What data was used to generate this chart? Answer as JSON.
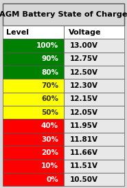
{
  "title": "AGM Battery State of Charge",
  "col_headers": [
    "Level",
    "Voltage"
  ],
  "rows": [
    {
      "level": "100%",
      "voltage": "13.00V",
      "color": "#008000"
    },
    {
      "level": "90%",
      "voltage": "12.75V",
      "color": "#008000"
    },
    {
      "level": "80%",
      "voltage": "12.50V",
      "color": "#008000"
    },
    {
      "level": "70%",
      "voltage": "12.30V",
      "color": "#FFFF00"
    },
    {
      "level": "60%",
      "voltage": "12.15V",
      "color": "#FFFF00"
    },
    {
      "level": "50%",
      "voltage": "12.05V",
      "color": "#FFFF00"
    },
    {
      "level": "40%",
      "voltage": "11.95V",
      "color": "#FF0000"
    },
    {
      "level": "30%",
      "voltage": "11.81V",
      "color": "#FF0000"
    },
    {
      "level": "20%",
      "voltage": "11.66V",
      "color": "#FF0000"
    },
    {
      "level": "10%",
      "voltage": "11.51V",
      "color": "#FF0000"
    },
    {
      "level": "0%",
      "voltage": "10.50V",
      "color": "#FF0000"
    }
  ],
  "bg_color": "#D8D8D8",
  "header_bg": "#FFFFFF",
  "voltage_bg": "#E8E8E8",
  "border_color": "#555555",
  "title_fontsize": 8.2,
  "header_fontsize": 8.0,
  "cell_fontsize": 7.5,
  "col_split": 0.5
}
